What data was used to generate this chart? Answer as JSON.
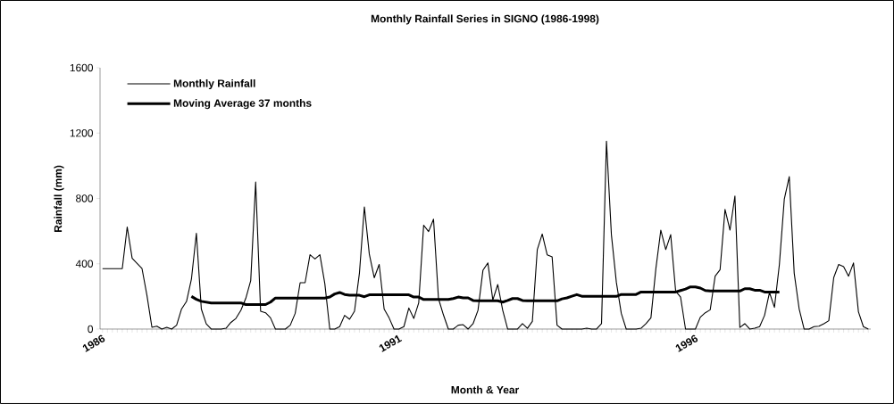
{
  "chart_data": {
    "type": "line",
    "title": "Monthly Rainfall Series in SIGNO (1986-1998)",
    "xlabel": "Month & Year",
    "ylabel": "Rainfall (mm)",
    "categories": [
      "1986",
      null,
      null,
      null,
      null,
      null,
      null,
      null,
      null,
      null,
      null,
      null,
      null,
      null,
      null,
      null,
      null,
      null,
      null,
      null,
      null,
      null,
      null,
      null,
      null,
      null,
      null,
      null,
      null,
      null,
      null,
      null,
      null,
      null,
      null,
      null,
      null,
      null,
      null,
      null,
      null,
      null,
      null,
      null,
      null,
      null,
      null,
      null,
      null,
      null,
      null,
      null,
      null,
      null,
      null,
      null,
      null,
      null,
      null,
      null,
      "1991",
      null,
      null,
      null,
      null,
      null,
      null,
      null,
      null,
      null,
      null,
      null,
      null,
      null,
      null,
      null,
      null,
      null,
      null,
      null,
      null,
      null,
      null,
      null,
      null,
      null,
      null,
      null,
      null,
      null,
      null,
      null,
      null,
      null,
      null,
      null,
      null,
      null,
      null,
      null,
      null,
      null,
      null,
      null,
      null,
      null,
      null,
      null,
      null,
      null,
      null,
      null,
      null,
      null,
      null,
      null,
      null,
      null,
      null,
      null,
      "1996",
      null,
      null,
      null,
      null,
      null,
      null,
      null,
      null,
      null,
      null,
      null,
      null,
      null,
      null,
      null,
      null,
      null,
      null,
      null,
      null,
      null,
      null,
      null,
      null,
      null,
      null,
      null,
      null,
      null,
      null,
      null,
      null,
      null,
      null,
      null
    ],
    "series": [
      {
        "name": "Monthly Rainfall",
        "color": "#000000",
        "values": [
          370,
          370,
          370,
          370,
          370,
          625,
          433,
          402,
          370,
          205,
          11,
          18,
          0,
          11,
          0,
          24,
          123,
          169,
          306,
          587,
          123,
          32,
          0,
          0,
          0,
          5,
          41,
          65,
          115,
          188,
          297,
          900,
          109,
          100,
          69,
          0,
          0,
          0,
          24,
          96,
          284,
          284,
          455,
          429,
          455,
          278,
          0,
          0,
          15,
          84,
          60,
          109,
          342,
          748,
          459,
          314,
          396,
          123,
          69,
          0,
          0,
          15,
          129,
          65,
          160,
          636,
          597,
          673,
          187,
          87,
          0,
          0,
          24,
          27,
          0,
          33,
          115,
          360,
          405,
          178,
          273,
          115,
          0,
          0,
          0,
          33,
          5,
          47,
          487,
          582,
          455,
          442,
          24,
          0,
          0,
          0,
          0,
          0,
          5,
          0,
          0,
          33,
          1151,
          578,
          287,
          96,
          0,
          0,
          0,
          5,
          33,
          69,
          369,
          606,
          487,
          578,
          233,
          196,
          0,
          0,
          0,
          73,
          100,
          118,
          324,
          364,
          733,
          606,
          815,
          10,
          33,
          0,
          5,
          15,
          84,
          224,
          133,
          396,
          797,
          933,
          342,
          124,
          0,
          0,
          15,
          18,
          33,
          51,
          315,
          396,
          382,
          324,
          405,
          106,
          15,
          0
        ]
      },
      {
        "name": "Moving Average 37 months",
        "color": "#000000",
        "values": [
          null,
          null,
          null,
          null,
          null,
          null,
          null,
          null,
          null,
          null,
          null,
          null,
          null,
          null,
          null,
          null,
          null,
          null,
          200,
          182,
          170,
          165,
          160,
          160,
          160,
          160,
          160,
          160,
          160,
          150,
          150,
          150,
          150,
          150,
          165,
          190,
          190,
          190,
          190,
          190,
          190,
          190,
          190,
          190,
          190,
          190,
          196,
          215,
          224,
          212,
          207,
          207,
          207,
          198,
          210,
          210,
          210,
          210,
          210,
          210,
          210,
          210,
          210,
          196,
          196,
          181,
          181,
          181,
          181,
          181,
          181,
          187,
          196,
          191,
          191,
          175,
          173,
          173,
          173,
          173,
          173,
          165,
          175,
          187,
          187,
          175,
          173,
          173,
          173,
          173,
          173,
          173,
          173,
          185,
          191,
          201,
          211,
          201,
          200,
          200,
          200,
          200,
          200,
          200,
          200,
          212,
          212,
          212,
          212,
          227,
          227,
          227,
          227,
          227,
          227,
          227,
          227,
          236,
          245,
          258,
          258,
          251,
          236,
          233,
          233,
          233,
          233,
          233,
          233,
          233,
          247,
          247,
          238,
          238,
          227,
          227,
          227,
          227,
          null,
          null,
          null,
          null,
          null,
          null,
          null,
          null,
          null,
          null,
          null,
          null,
          null,
          null,
          null,
          null,
          null,
          null
        ]
      }
    ],
    "ylim": [
      0,
      1600
    ],
    "yticks": [
      0,
      400,
      800,
      1200,
      1600
    ],
    "legend": "top left"
  }
}
